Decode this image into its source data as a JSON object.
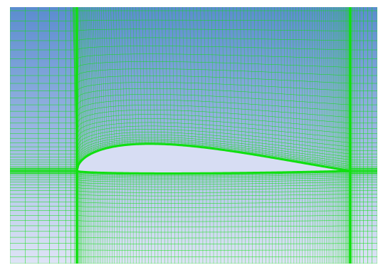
{
  "viewport": {
    "kind": "structured airfoil mesh render",
    "background_gradient": {
      "top": "#5b8ccf",
      "bottom": "#dfe4f6"
    },
    "mesh_color": "#10e010",
    "airfoil_fill": "#d7ddf3"
  },
  "icons": {
    "mesh": "mesh-grid-icon"
  }
}
